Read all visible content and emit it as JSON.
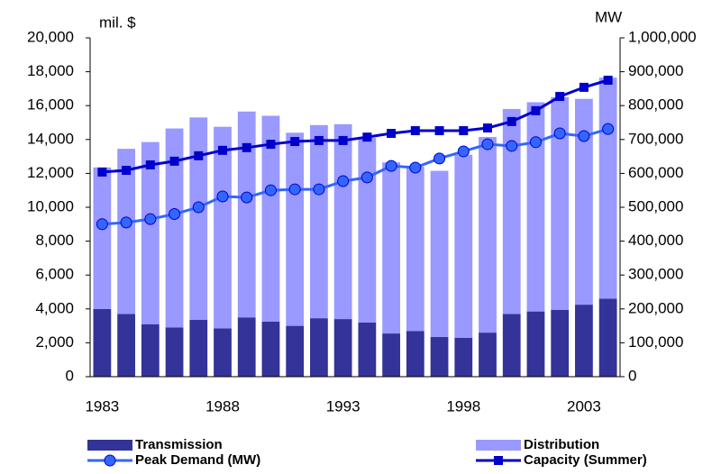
{
  "chart_data": {
    "type": "bar",
    "ylabel": "mil. $",
    "y2label": "MW",
    "categories": [
      "1983",
      null,
      null,
      null,
      null,
      "1988",
      null,
      null,
      null,
      null,
      "1993",
      null,
      null,
      null,
      null,
      "1998",
      null,
      null,
      null,
      null,
      "2003",
      null
    ],
    "ylim": [
      0,
      20000
    ],
    "yticks": [
      0,
      {
        "value": 2000,
        "label": "2,000"
      },
      {
        "value": 4000,
        "label": "4,000"
      },
      {
        "value": 6000,
        "label": "6,000"
      },
      {
        "value": 8000,
        "label": "8,000"
      },
      {
        "value": 10000,
        "label": "10,000"
      },
      {
        "value": 12000,
        "label": "12,000"
      },
      {
        "value": 14000,
        "label": "14,000"
      },
      {
        "value": 16000,
        "label": "16,000"
      },
      {
        "value": 18000,
        "label": "18,000"
      },
      {
        "value": 20000,
        "label": "20,000"
      }
    ],
    "y2lim": [
      0,
      1000000
    ],
    "y2ticks": [
      0,
      {
        "value": 100000,
        "label": "100,000"
      },
      {
        "value": 200000,
        "label": "200,000"
      },
      {
        "value": 300000,
        "label": "300,000"
      },
      {
        "value": 400000,
        "label": "400,000"
      },
      {
        "value": 500000,
        "label": "500,000"
      },
      {
        "value": 600000,
        "label": "600,000"
      },
      {
        "value": 700000,
        "label": "700,000"
      },
      {
        "value": 800000,
        "label": "800,000"
      },
      {
        "value": 900000,
        "label": "900,000"
      },
      {
        "value": 1000000,
        "label": "1,000,000"
      }
    ],
    "stacked": true,
    "series": [
      {
        "name": "Transmission",
        "type": "bar",
        "color": "#333399",
        "values": [
          4000,
          3700,
          3100,
          2900,
          3350,
          2850,
          3500,
          3250,
          3000,
          3450,
          3400,
          3200,
          2550,
          2700,
          2350,
          2300,
          2600,
          3700,
          3850,
          3950,
          4250,
          4600
        ]
      },
      {
        "name": "Distribution",
        "type": "bar",
        "color": "#9999ff",
        "values": [
          8350,
          9750,
          10750,
          11750,
          11950,
          11900,
          12150,
          12150,
          11400,
          11400,
          11500,
          10900,
          10100,
          9700,
          9800,
          10800,
          11550,
          12100,
          12350,
          12550,
          12150,
          13050
        ]
      },
      {
        "name": "Peak Demand (MW)",
        "type": "line",
        "axis": "y2",
        "marker": "circle",
        "color": "#3366ff",
        "values": [
          450000,
          455000,
          465000,
          480000,
          500000,
          532000,
          529000,
          550000,
          553000,
          553000,
          577000,
          588000,
          622000,
          617000,
          644000,
          665000,
          686000,
          681000,
          692000,
          718000,
          710000,
          731000
        ]
      },
      {
        "name": "Capacity (Summer)",
        "type": "line",
        "axis": "y2",
        "marker": "square",
        "color": "#0000cc",
        "values": [
          604000,
          609000,
          625000,
          636000,
          652000,
          668000,
          676000,
          686000,
          694000,
          697000,
          697000,
          707000,
          718000,
          726000,
          726000,
          726000,
          734000,
          753000,
          785000,
          827000,
          854000,
          875000
        ]
      }
    ]
  }
}
